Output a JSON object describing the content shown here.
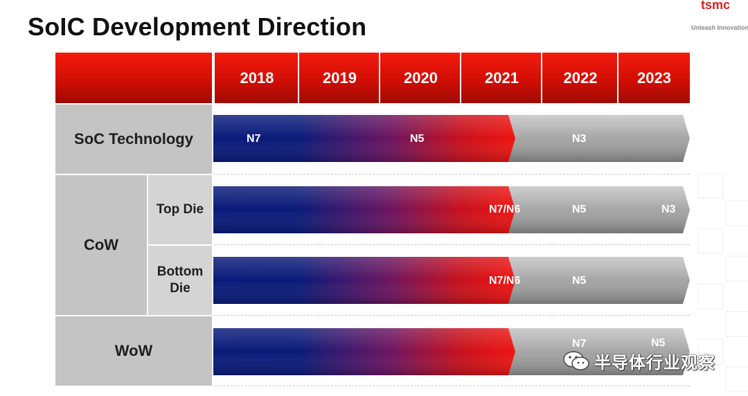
{
  "title": "SoIC Development Direction",
  "logo": {
    "mark": "tsmc",
    "tagline": "Unleash Innovation"
  },
  "years": [
    "2018",
    "2019",
    "2020",
    "2021",
    "2022",
    "2023"
  ],
  "rows": {
    "soc_technology": {
      "label": "SoC Technology",
      "labels": [
        "N7",
        "N5",
        "N3"
      ]
    },
    "cow": {
      "label": "CoW",
      "top_die": {
        "label": "Top Die",
        "labels": [
          "N7/N6",
          "N5",
          "N3"
        ]
      },
      "bottom_die": {
        "label": "Bottom Die",
        "labels": [
          "N7/N6",
          "N5"
        ]
      }
    },
    "wow": {
      "label": "WoW",
      "labels": [
        "N7",
        "N5"
      ]
    }
  },
  "watermark": {
    "text": "半导体行业观察"
  },
  "colors": {
    "header_red": "#e01408",
    "bar_blue": "#0a1a7a",
    "bar_red": "#e01010",
    "bar_gray": "#a8a8a8",
    "cell_gray": "#c4c4c4"
  }
}
